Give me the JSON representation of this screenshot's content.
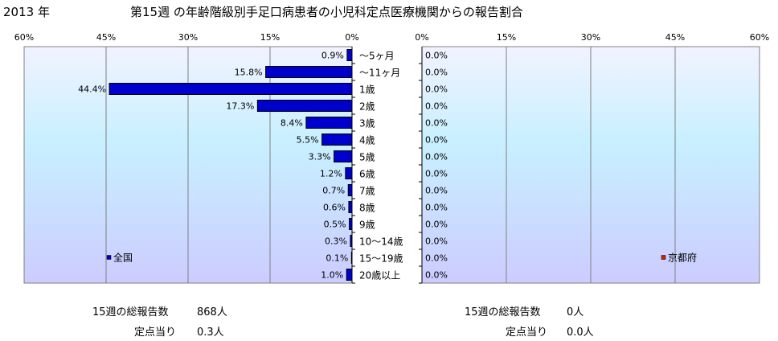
{
  "header": {
    "year": "2013 年",
    "title": "第15週 の年齢階級別手足口病患者の小児科定点医療機関からの報告割合"
  },
  "chart_data": [
    {
      "type": "bar",
      "orientation": "horizontal",
      "direction": "right-to-left",
      "name": "national",
      "xlim": [
        0,
        60
      ],
      "xticks": [
        "60%",
        "45%",
        "30%",
        "15%",
        "0%"
      ],
      "grid": true,
      "categories": [
        "〜5ヶ月",
        "〜11ヶ月",
        "1歳",
        "2歳",
        "3歳",
        "4歳",
        "5歳",
        "6歳",
        "7歳",
        "8歳",
        "9歳",
        "10〜14歳",
        "15〜19歳",
        "20歳以上"
      ],
      "series": [
        {
          "name": "全国",
          "color": "#0000cc",
          "values": [
            0.9,
            15.8,
            44.4,
            17.3,
            8.4,
            5.5,
            3.3,
            1.2,
            0.7,
            0.6,
            0.5,
            0.3,
            0.1,
            1.0
          ],
          "labels": [
            "0.9%",
            "15.8%",
            "44.4%",
            "17.3%",
            "8.4%",
            "5.5%",
            "3.3%",
            "1.2%",
            "0.7%",
            "0.6%",
            "0.5%",
            "0.3%",
            "0.1%",
            "1.0%"
          ]
        }
      ],
      "legend": "lower-left"
    },
    {
      "type": "bar",
      "orientation": "horizontal",
      "direction": "left-to-right",
      "name": "kyoto",
      "xlim": [
        0,
        60
      ],
      "xticks": [
        "0%",
        "15%",
        "30%",
        "45%",
        "60%"
      ],
      "grid": true,
      "categories": [
        "〜5ヶ月",
        "〜11ヶ月",
        "1歳",
        "2歳",
        "3歳",
        "4歳",
        "5歳",
        "6歳",
        "7歳",
        "8歳",
        "9歳",
        "10〜14歳",
        "15〜19歳",
        "20歳以上"
      ],
      "series": [
        {
          "name": "京都府",
          "color": "#cc2200",
          "values": [
            0,
            0,
            0,
            0,
            0,
            0,
            0,
            0,
            0,
            0,
            0,
            0,
            0,
            0
          ],
          "labels": [
            "0.0%",
            "0.0%",
            "0.0%",
            "0.0%",
            "0.0%",
            "0.0%",
            "0.0%",
            "0.0%",
            "0.0%",
            "0.0%",
            "0.0%",
            "0.0%",
            "0.0%",
            "0.0%"
          ]
        }
      ],
      "legend": "lower-right"
    }
  ],
  "stats": {
    "national": {
      "reports_label": "15週の総報告数",
      "reports_value": "868人",
      "per_site_label": "定点当り",
      "per_site_value": "0.3人"
    },
    "kyoto": {
      "reports_label": "15週の総報告数",
      "reports_value": "0人",
      "per_site_label": "定点当り",
      "per_site_value": "0.0人"
    }
  },
  "colors": {
    "plot_bg_top": "#f2f2ff",
    "plot_bg_mid": "#c8f0ff",
    "plot_bg_bottom": "#ccccff"
  }
}
